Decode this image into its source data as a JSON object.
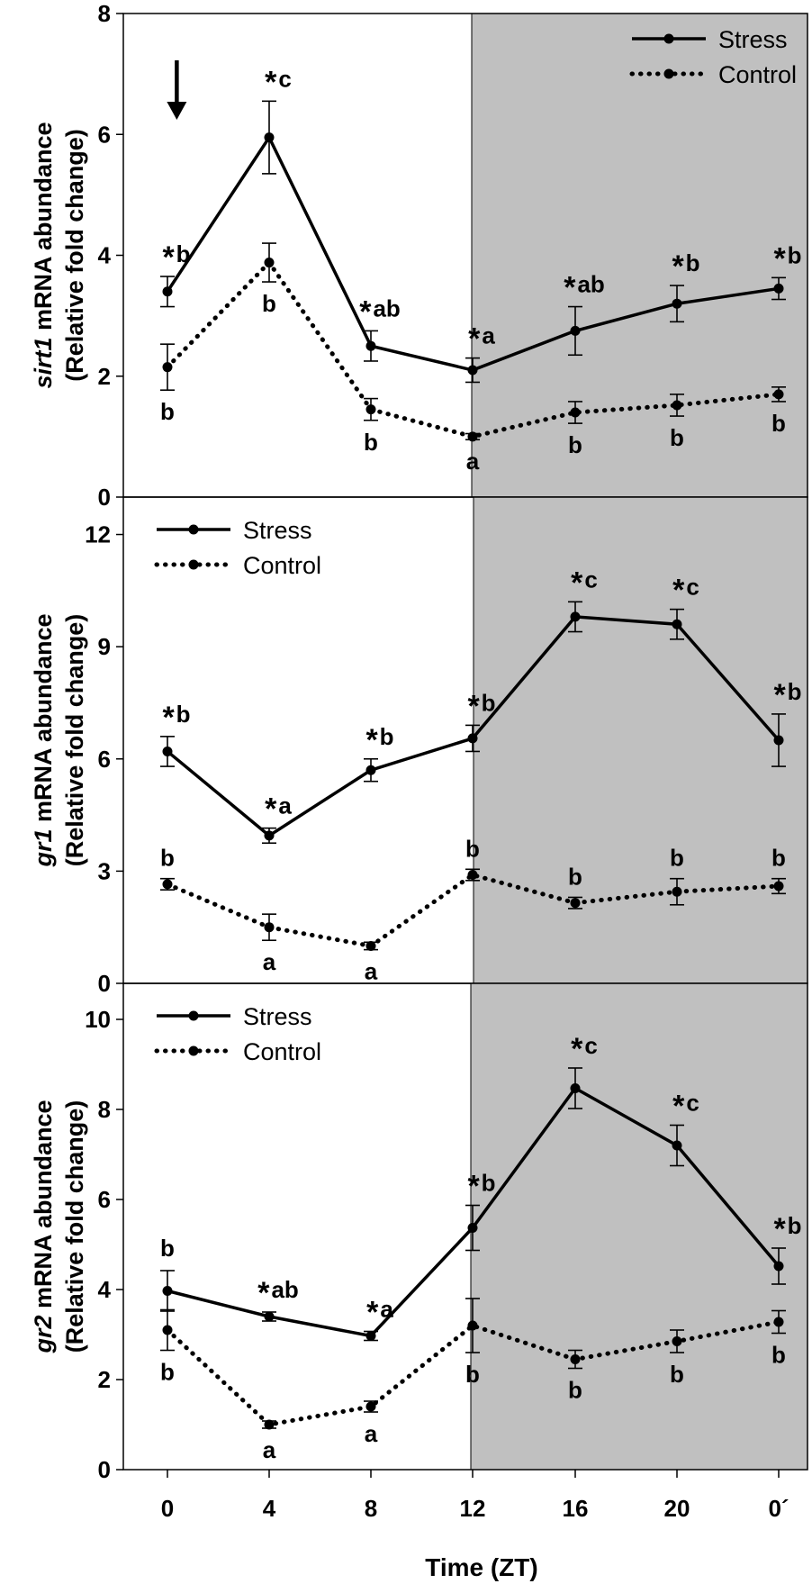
{
  "colors": {
    "night_shade": "#c0c0c0",
    "line": "#000000",
    "background": "#ffffff"
  },
  "x_tick_labels": [
    "0",
    "4",
    "8",
    "12",
    "16",
    "20",
    "0´"
  ],
  "xlabel": "Time (ZT)",
  "legend": {
    "stress": "Stress",
    "control": "Control"
  },
  "chart_data": [
    {
      "type": "line",
      "gene": "sirt1",
      "ylabel_gene": "sirt1",
      "ylabel_suffix": " mRNA abundance",
      "ylabel_line2": "(Relative fold change)",
      "ylim": [
        0,
        8
      ],
      "yticks": [
        0,
        2,
        4,
        6,
        8
      ],
      "x": [
        0,
        4,
        8,
        12,
        16,
        20,
        24
      ],
      "arrow_at": 1.5,
      "legend_position": "top-right",
      "series": [
        {
          "name": "Stress",
          "style": "solid",
          "values": [
            3.4,
            5.95,
            2.5,
            2.1,
            2.75,
            3.2,
            3.45
          ],
          "errors": [
            0.25,
            0.6,
            0.25,
            0.2,
            0.4,
            0.3,
            0.18
          ],
          "labels": [
            "b",
            "c",
            "ab",
            "a",
            "ab",
            "b",
            "b"
          ],
          "stars": [
            true,
            true,
            true,
            true,
            true,
            true,
            true
          ]
        },
        {
          "name": "Control",
          "style": "dotted",
          "values": [
            2.15,
            3.88,
            1.45,
            1.0,
            1.4,
            1.52,
            1.7
          ],
          "errors": [
            0.38,
            0.32,
            0.18,
            0.05,
            0.18,
            0.18,
            0.12
          ],
          "labels": [
            "b",
            "b",
            "b",
            "a",
            "b",
            "b",
            "b"
          ]
        }
      ]
    },
    {
      "type": "line",
      "gene": "gr1",
      "ylabel_gene": "gr1",
      "ylabel_suffix": " mRNA abundance",
      "ylabel_line2": "(Relative fold change)",
      "ylim": [
        0,
        13
      ],
      "yticks": [
        0,
        3,
        6,
        9,
        12
      ],
      "x": [
        0,
        4,
        8,
        12,
        16,
        20,
        24
      ],
      "legend_position": "top-left",
      "series": [
        {
          "name": "Stress",
          "style": "solid",
          "values": [
            6.2,
            3.95,
            5.7,
            6.55,
            9.8,
            9.6,
            6.5
          ],
          "errors": [
            0.4,
            0.2,
            0.3,
            0.35,
            0.4,
            0.4,
            0.7
          ],
          "labels": [
            "b",
            "a",
            "b",
            "b",
            "c",
            "c",
            "b"
          ],
          "stars": [
            true,
            true,
            true,
            true,
            true,
            true,
            true
          ]
        },
        {
          "name": "Control",
          "style": "dotted",
          "values": [
            2.65,
            1.5,
            1.0,
            2.9,
            2.15,
            2.45,
            2.6
          ],
          "errors": [
            0.15,
            0.35,
            0.1,
            0.15,
            0.15,
            0.35,
            0.2
          ],
          "labels": [
            "b",
            "a",
            "a",
            "b",
            "b",
            "b",
            "b"
          ]
        }
      ]
    },
    {
      "type": "line",
      "gene": "gr2",
      "ylabel_gene": "gr2",
      "ylabel_suffix": " mRNA abundance",
      "ylabel_line2": "(Relative fold change)",
      "ylim": [
        0,
        10.8
      ],
      "yticks": [
        0,
        2,
        4,
        6,
        8,
        10
      ],
      "x": [
        0,
        4,
        8,
        12,
        16,
        20,
        24
      ],
      "legend_position": "top-left",
      "series": [
        {
          "name": "Stress",
          "style": "solid",
          "values": [
            3.97,
            3.4,
            2.97,
            5.37,
            8.47,
            7.2,
            4.52
          ],
          "errors": [
            0.45,
            0.1,
            0.1,
            0.5,
            0.45,
            0.45,
            0.4
          ],
          "labels": [
            "b",
            "ab",
            "a",
            "b",
            "c",
            "c",
            "b"
          ],
          "stars": [
            false,
            true,
            true,
            true,
            true,
            true,
            true
          ]
        },
        {
          "name": "Control",
          "style": "dotted",
          "values": [
            3.1,
            1.0,
            1.4,
            3.2,
            2.45,
            2.85,
            3.28
          ],
          "errors": [
            0.45,
            0.08,
            0.12,
            0.6,
            0.2,
            0.25,
            0.25
          ],
          "labels": [
            "b",
            "a",
            "a",
            "b",
            "b",
            "b",
            "b"
          ]
        }
      ]
    }
  ]
}
